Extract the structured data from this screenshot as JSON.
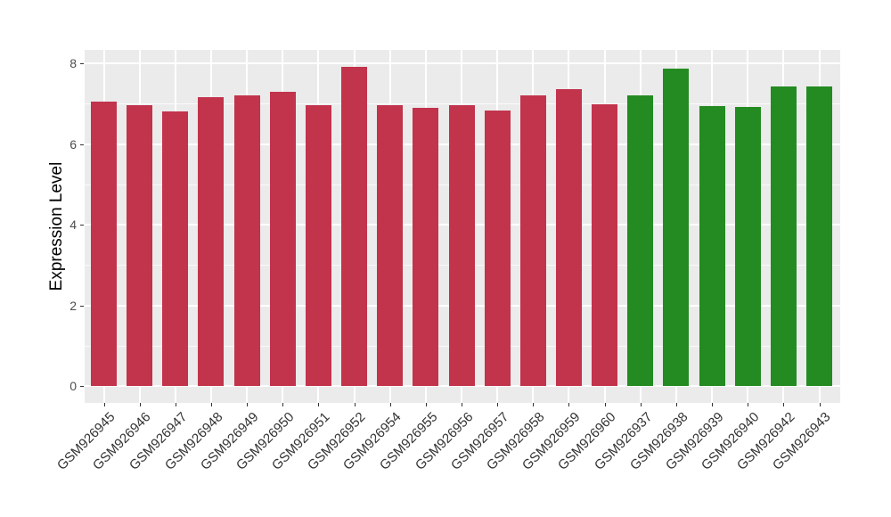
{
  "figure": {
    "background": "#FFFFFF"
  },
  "chart_data": {
    "type": "bar",
    "title": "",
    "xlabel": "",
    "ylabel": "Expression Level",
    "ylim": [
      0,
      8.33
    ],
    "yticks": [
      0,
      2,
      4,
      6,
      8
    ],
    "minor_yticks": [
      1,
      3,
      5,
      7
    ],
    "grid": "on",
    "legend": "none",
    "panel_background": "#EBEBEB",
    "gridline_color": "#FFFFFF",
    "tick_color": "#333333",
    "tick_label_color": "#4D4D4D",
    "categories": [
      "GSM926945",
      "GSM926946",
      "GSM926947",
      "GSM926948",
      "GSM926949",
      "GSM926950",
      "GSM926951",
      "GSM926952",
      "GSM926954",
      "GSM926955",
      "GSM926956",
      "GSM926957",
      "GSM926958",
      "GSM926959",
      "GSM926960",
      "GSM926937",
      "GSM926938",
      "GSM926939",
      "GSM926940",
      "GSM926942",
      "GSM926943"
    ],
    "values": [
      7.05,
      6.97,
      6.81,
      7.16,
      7.2,
      7.3,
      6.96,
      7.91,
      6.97,
      6.9,
      6.97,
      6.83,
      7.2,
      7.36,
      6.99,
      7.21,
      7.87,
      6.95,
      6.92,
      7.42,
      7.42
    ],
    "bar_groups": [
      "red",
      "red",
      "red",
      "red",
      "red",
      "red",
      "red",
      "red",
      "red",
      "red",
      "red",
      "red",
      "red",
      "red",
      "red",
      "green",
      "green",
      "green",
      "green",
      "green",
      "green"
    ],
    "group_colors": {
      "red": "#C2334C",
      "green": "#238B21"
    }
  }
}
